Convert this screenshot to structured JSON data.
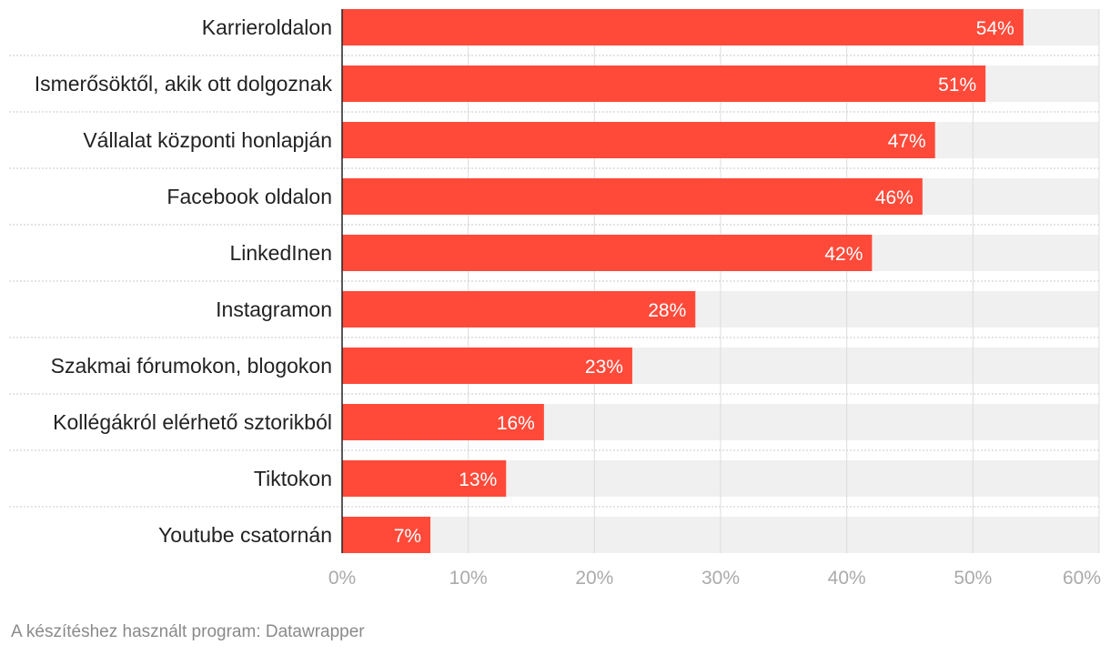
{
  "chart_data": {
    "type": "bar",
    "orientation": "horizontal",
    "categories": [
      "Karrieroldalon",
      "Ismerősöktől, akik ott dolgoznak",
      "Vállalat központi honlapján",
      "Facebook oldalon",
      "LinkedInen",
      "Instagramon",
      "Szakmai fórumokon, blogokon",
      "Kollégákról elérhető sztorikból",
      "Tiktokon",
      "Youtube csatornán"
    ],
    "values": [
      54,
      51,
      47,
      46,
      42,
      28,
      23,
      16,
      13,
      7
    ],
    "value_labels": [
      "54%",
      "51%",
      "47%",
      "46%",
      "42%",
      "28%",
      "23%",
      "16%",
      "13%",
      "7%"
    ],
    "xlim": [
      0,
      60
    ],
    "ticks": [
      0,
      10,
      20,
      30,
      40,
      50,
      60
    ],
    "tick_labels": [
      "0%",
      "10%",
      "20%",
      "30%",
      "40%",
      "50%",
      "60%"
    ],
    "title": "",
    "xlabel": "",
    "ylabel": "",
    "grid": true,
    "bar_color": "#ff4a3a",
    "track_color": "#f0f0f0",
    "grid_color": "#dcdcdc"
  },
  "footer": {
    "credit": "A készítéshez használt program: Datawrapper"
  }
}
